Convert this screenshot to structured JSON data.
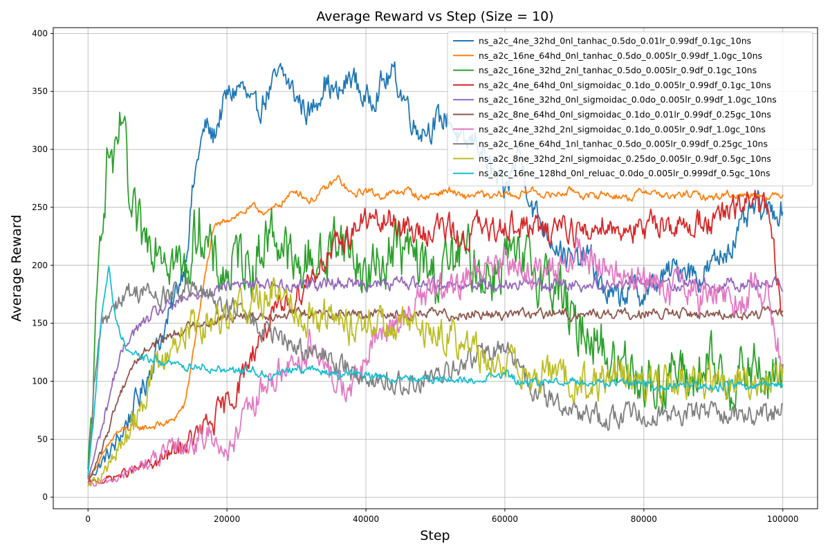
{
  "chart_data": {
    "type": "line",
    "title": "Average Reward vs Step (Size = 10)",
    "xlabel": "Step",
    "ylabel": "Average Reward",
    "xlim": [
      -5000,
      105000
    ],
    "ylim": [
      -10,
      405
    ],
    "xticks": [
      0,
      20000,
      40000,
      60000,
      80000,
      100000
    ],
    "yticks": [
      0,
      50,
      100,
      150,
      200,
      250,
      300,
      350,
      400
    ],
    "grid": true,
    "legend_position": "top-right",
    "series": [
      {
        "name": "ns_a2c_4ne_32hd_0nl_tanhac_0.5do_0.01lr_0.99df_0.1gc_10ns",
        "color": "#1f77b4",
        "x": [
          0,
          2000,
          4000,
          6000,
          8000,
          10000,
          12000,
          14000,
          15000,
          16000,
          17000,
          18000,
          19000,
          20000,
          22000,
          24000,
          26000,
          28000,
          30000,
          32000,
          34000,
          36000,
          38000,
          40000,
          42000,
          44000,
          45000,
          46000,
          47000,
          48000,
          50000,
          52000,
          54000,
          56000,
          58000,
          60000,
          62000,
          64000,
          66000,
          68000,
          70000,
          72000,
          74000,
          76000,
          78000,
          80000,
          82000,
          84000,
          86000,
          88000,
          90000,
          92000,
          94000,
          96000,
          98000,
          100000
        ],
        "values": [
          15,
          30,
          45,
          70,
          95,
          130,
          160,
          205,
          260,
          300,
          320,
          310,
          330,
          345,
          355,
          330,
          350,
          365,
          345,
          330,
          360,
          345,
          365,
          340,
          355,
          365,
          350,
          340,
          320,
          318,
          322,
          328,
          300,
          310,
          280,
          260,
          300,
          250,
          230,
          215,
          200,
          210,
          180,
          170,
          180,
          175,
          185,
          195,
          200,
          190,
          200,
          215,
          230,
          250,
          245,
          250
        ]
      },
      {
        "name": "ns_a2c_16ne_64hd_0nl_tanhac_0.5do_0.005lr_0.99df_1.0gc_10ns",
        "color": "#ff7f0e",
        "x": [
          0,
          2000,
          4000,
          6000,
          8000,
          10000,
          12000,
          14000,
          16000,
          18000,
          20000,
          22000,
          24000,
          26000,
          28000,
          30000,
          32000,
          34000,
          36000,
          38000,
          40000,
          42000,
          44000,
          46000,
          48000,
          50000,
          52000,
          54000,
          56000,
          58000,
          60000,
          62000,
          64000,
          66000,
          68000,
          70000,
          72000,
          74000,
          76000,
          78000,
          80000,
          82000,
          84000,
          86000,
          88000,
          90000,
          92000,
          94000,
          96000,
          98000,
          100000
        ],
        "values": [
          15,
          35,
          55,
          60,
          60,
          62,
          65,
          80,
          160,
          230,
          240,
          245,
          250,
          245,
          255,
          265,
          255,
          265,
          275,
          260,
          265,
          260,
          262,
          265,
          258,
          262,
          265,
          258,
          262,
          258,
          262,
          260,
          265,
          260,
          262,
          265,
          258,
          262,
          260,
          258,
          265,
          262,
          258,
          262,
          260,
          258,
          262,
          260,
          262,
          258,
          262
        ]
      },
      {
        "name": "ns_a2c_16ne_32hd_2nl_tanhac_0.5do_0.005lr_0.9df_0.1gc_10ns",
        "color": "#2ca02c",
        "x": [
          0,
          1000,
          2000,
          3000,
          4000,
          5000,
          6000,
          8000,
          10000,
          12000,
          14000,
          16000,
          18000,
          20000,
          22000,
          24000,
          26000,
          28000,
          30000,
          32000,
          34000,
          36000,
          38000,
          40000,
          42000,
          44000,
          46000,
          48000,
          50000,
          52000,
          54000,
          56000,
          58000,
          60000,
          62000,
          64000,
          66000,
          68000,
          70000,
          72000,
          74000,
          76000,
          78000,
          80000,
          82000,
          84000,
          86000,
          88000,
          90000,
          92000,
          94000,
          96000,
          98000,
          100000
        ],
        "values": [
          20,
          120,
          250,
          300,
          280,
          330,
          240,
          220,
          230,
          210,
          190,
          240,
          200,
          190,
          210,
          200,
          230,
          220,
          190,
          210,
          200,
          230,
          210,
          190,
          200,
          220,
          210,
          200,
          190,
          200,
          210,
          200,
          190,
          210,
          195,
          200,
          190,
          180,
          140,
          150,
          130,
          110,
          120,
          100,
          95,
          110,
          100,
          105,
          110,
          100,
          105,
          110,
          100,
          105
        ]
      },
      {
        "name": "ns_a2c_4ne_64hd_0nl_sigmoidac_0.1do_0.005lr_0.99df_0.1gc_10ns",
        "color": "#d62728",
        "x": [
          0,
          2000,
          4000,
          6000,
          8000,
          10000,
          12000,
          14000,
          16000,
          18000,
          20000,
          22000,
          24000,
          26000,
          28000,
          30000,
          32000,
          34000,
          36000,
          38000,
          40000,
          42000,
          44000,
          46000,
          48000,
          50000,
          52000,
          54000,
          56000,
          58000,
          60000,
          62000,
          64000,
          66000,
          68000,
          70000,
          72000,
          74000,
          76000,
          78000,
          80000,
          82000,
          84000,
          86000,
          88000,
          90000,
          92000,
          94000,
          96000,
          98000,
          100000
        ],
        "values": [
          12,
          14,
          18,
          22,
          26,
          30,
          38,
          45,
          55,
          65,
          80,
          100,
          130,
          150,
          160,
          175,
          190,
          205,
          215,
          230,
          240,
          235,
          240,
          230,
          225,
          235,
          230,
          220,
          235,
          225,
          240,
          230,
          235,
          225,
          240,
          230,
          225,
          240,
          230,
          235,
          225,
          240,
          235,
          230,
          240,
          235,
          245,
          250,
          260,
          240,
          150
        ]
      },
      {
        "name": "ns_a2c_16ne_32hd_0nl_sigmoidac_0.0do_0.005lr_0.99df_1.0gc_10ns",
        "color": "#9467bd",
        "x": [
          0,
          2000,
          4000,
          6000,
          8000,
          10000,
          12000,
          14000,
          16000,
          18000,
          20000,
          22000,
          24000,
          26000,
          28000,
          30000,
          32000,
          34000,
          36000,
          38000,
          40000,
          42000,
          44000,
          46000,
          48000,
          50000,
          52000,
          54000,
          56000,
          58000,
          60000,
          62000,
          64000,
          66000,
          68000,
          70000,
          72000,
          74000,
          76000,
          78000,
          80000,
          82000,
          84000,
          86000,
          88000,
          90000,
          92000,
          94000,
          96000,
          98000,
          100000
        ],
        "values": [
          15,
          60,
          110,
          140,
          150,
          160,
          165,
          170,
          175,
          180,
          182,
          185,
          183,
          185,
          182,
          184,
          185,
          183,
          186,
          184,
          185,
          183,
          184,
          186,
          183,
          185,
          184,
          183,
          185,
          184,
          183,
          185,
          184,
          183,
          185,
          184,
          183,
          185,
          184,
          183,
          185,
          184,
          183,
          185,
          184,
          183,
          185,
          184,
          183,
          185,
          184
        ]
      },
      {
        "name": "ns_a2c_8ne_64hd_0nl_sigmoidac_0.1do_0.01lr_0.99df_0.25gc_10ns",
        "color": "#8c564b",
        "x": [
          0,
          2000,
          4000,
          6000,
          8000,
          10000,
          12000,
          14000,
          16000,
          18000,
          20000,
          22000,
          24000,
          26000,
          28000,
          30000,
          32000,
          34000,
          36000,
          38000,
          40000,
          42000,
          44000,
          46000,
          48000,
          50000,
          52000,
          54000,
          56000,
          58000,
          60000,
          62000,
          64000,
          66000,
          68000,
          70000,
          72000,
          74000,
          76000,
          78000,
          80000,
          82000,
          84000,
          86000,
          88000,
          90000,
          92000,
          94000,
          96000,
          98000,
          100000
        ],
        "values": [
          12,
          40,
          80,
          110,
          125,
          135,
          140,
          145,
          150,
          152,
          155,
          158,
          156,
          158,
          157,
          159,
          158,
          157,
          159,
          158,
          157,
          159,
          158,
          157,
          158,
          159,
          157,
          158,
          159,
          157,
          158,
          159,
          157,
          158,
          159,
          157,
          158,
          159,
          157,
          158,
          159,
          157,
          158,
          159,
          157,
          158,
          159,
          157,
          158,
          159,
          158
        ]
      },
      {
        "name": "ns_a2c_4ne_32hd_2nl_sigmoidac_0.1do_0.005lr_0.9df_1.0gc_10ns",
        "color": "#e377c2",
        "x": [
          0,
          2000,
          4000,
          6000,
          8000,
          10000,
          12000,
          14000,
          16000,
          18000,
          20000,
          22000,
          24000,
          26000,
          28000,
          30000,
          32000,
          34000,
          36000,
          38000,
          40000,
          42000,
          44000,
          46000,
          48000,
          50000,
          52000,
          54000,
          56000,
          58000,
          60000,
          62000,
          64000,
          66000,
          68000,
          70000,
          72000,
          74000,
          76000,
          78000,
          80000,
          82000,
          84000,
          86000,
          88000,
          90000,
          92000,
          94000,
          96000,
          98000,
          100000
        ],
        "values": [
          10,
          12,
          16,
          22,
          28,
          34,
          40,
          45,
          50,
          55,
          35,
          60,
          80,
          100,
          110,
          120,
          130,
          110,
          100,
          90,
          120,
          140,
          150,
          160,
          170,
          180,
          175,
          185,
          200,
          190,
          210,
          200,
          195,
          190,
          200,
          210,
          205,
          200,
          195,
          185,
          190,
          180,
          175,
          185,
          170,
          180,
          175,
          170,
          180,
          175,
          110
        ]
      },
      {
        "name": "ns_a2c_16ne_64hd_1nl_tanhac_0.5do_0.005lr_0.99df_0.25gc_10ns",
        "color": "#7f7f7f",
        "x": [
          0,
          1000,
          2000,
          4000,
          6000,
          8000,
          10000,
          12000,
          14000,
          16000,
          18000,
          20000,
          22000,
          24000,
          26000,
          28000,
          30000,
          32000,
          34000,
          36000,
          38000,
          40000,
          42000,
          44000,
          46000,
          48000,
          50000,
          52000,
          54000,
          56000,
          58000,
          60000,
          62000,
          64000,
          66000,
          68000,
          70000,
          72000,
          74000,
          76000,
          78000,
          80000,
          82000,
          84000,
          86000,
          88000,
          90000,
          92000,
          94000,
          96000,
          98000,
          100000
        ],
        "values": [
          15,
          100,
          150,
          170,
          175,
          180,
          170,
          175,
          180,
          175,
          170,
          165,
          160,
          150,
          140,
          135,
          130,
          125,
          120,
          115,
          110,
          105,
          100,
          98,
          95,
          100,
          102,
          108,
          115,
          120,
          125,
          130,
          110,
          95,
          85,
          80,
          75,
          72,
          70,
          68,
          72,
          70,
          75,
          72,
          70,
          74,
          72,
          75,
          70,
          73,
          72,
          78
        ]
      },
      {
        "name": "ns_a2c_8ne_32hd_2nl_sigmoidac_0.25do_0.005lr_0.9df_0.5gc_10ns",
        "color": "#bcbd22",
        "x": [
          0,
          2000,
          4000,
          6000,
          8000,
          10000,
          12000,
          14000,
          16000,
          18000,
          20000,
          22000,
          24000,
          26000,
          28000,
          30000,
          32000,
          34000,
          36000,
          38000,
          40000,
          42000,
          44000,
          46000,
          48000,
          50000,
          52000,
          54000,
          56000,
          58000,
          60000,
          62000,
          64000,
          66000,
          68000,
          70000,
          72000,
          74000,
          76000,
          78000,
          80000,
          82000,
          84000,
          86000,
          88000,
          90000,
          92000,
          94000,
          96000,
          98000,
          100000
        ],
        "values": [
          12,
          20,
          35,
          60,
          90,
          110,
          130,
          145,
          150,
          155,
          160,
          165,
          170,
          175,
          180,
          165,
          155,
          160,
          150,
          145,
          155,
          150,
          145,
          150,
          140,
          145,
          140,
          135,
          125,
          120,
          115,
          110,
          100,
          110,
          105,
          100,
          95,
          100,
          105,
          100,
          95,
          100,
          98,
          102,
          100,
          95,
          100,
          105,
          100,
          98,
          110
        ]
      },
      {
        "name": "ns_a2c_16ne_128hd_0nl_reluac_0.0do_0.005lr_0.999df_0.5gc_10ns",
        "color": "#17becf",
        "x": [
          0,
          1000,
          2000,
          3000,
          4000,
          6000,
          8000,
          10000,
          12000,
          14000,
          16000,
          18000,
          20000,
          22000,
          24000,
          26000,
          28000,
          30000,
          32000,
          34000,
          36000,
          38000,
          40000,
          42000,
          44000,
          46000,
          48000,
          50000,
          52000,
          54000,
          56000,
          58000,
          60000,
          62000,
          64000,
          66000,
          68000,
          70000,
          72000,
          74000,
          76000,
          78000,
          80000,
          82000,
          84000,
          86000,
          88000,
          90000,
          92000,
          94000,
          96000,
          98000,
          100000
        ],
        "values": [
          20,
          80,
          160,
          200,
          150,
          125,
          120,
          118,
          115,
          112,
          115,
          110,
          112,
          108,
          110,
          105,
          108,
          112,
          110,
          108,
          105,
          108,
          106,
          104,
          102,
          104,
          103,
          101,
          102,
          100,
          102,
          104,
          106,
          100,
          98,
          100,
          99,
          101,
          98,
          97,
          99,
          98,
          97,
          96,
          98,
          97,
          96,
          95,
          97,
          96,
          95,
          96,
          95
        ]
      }
    ]
  }
}
